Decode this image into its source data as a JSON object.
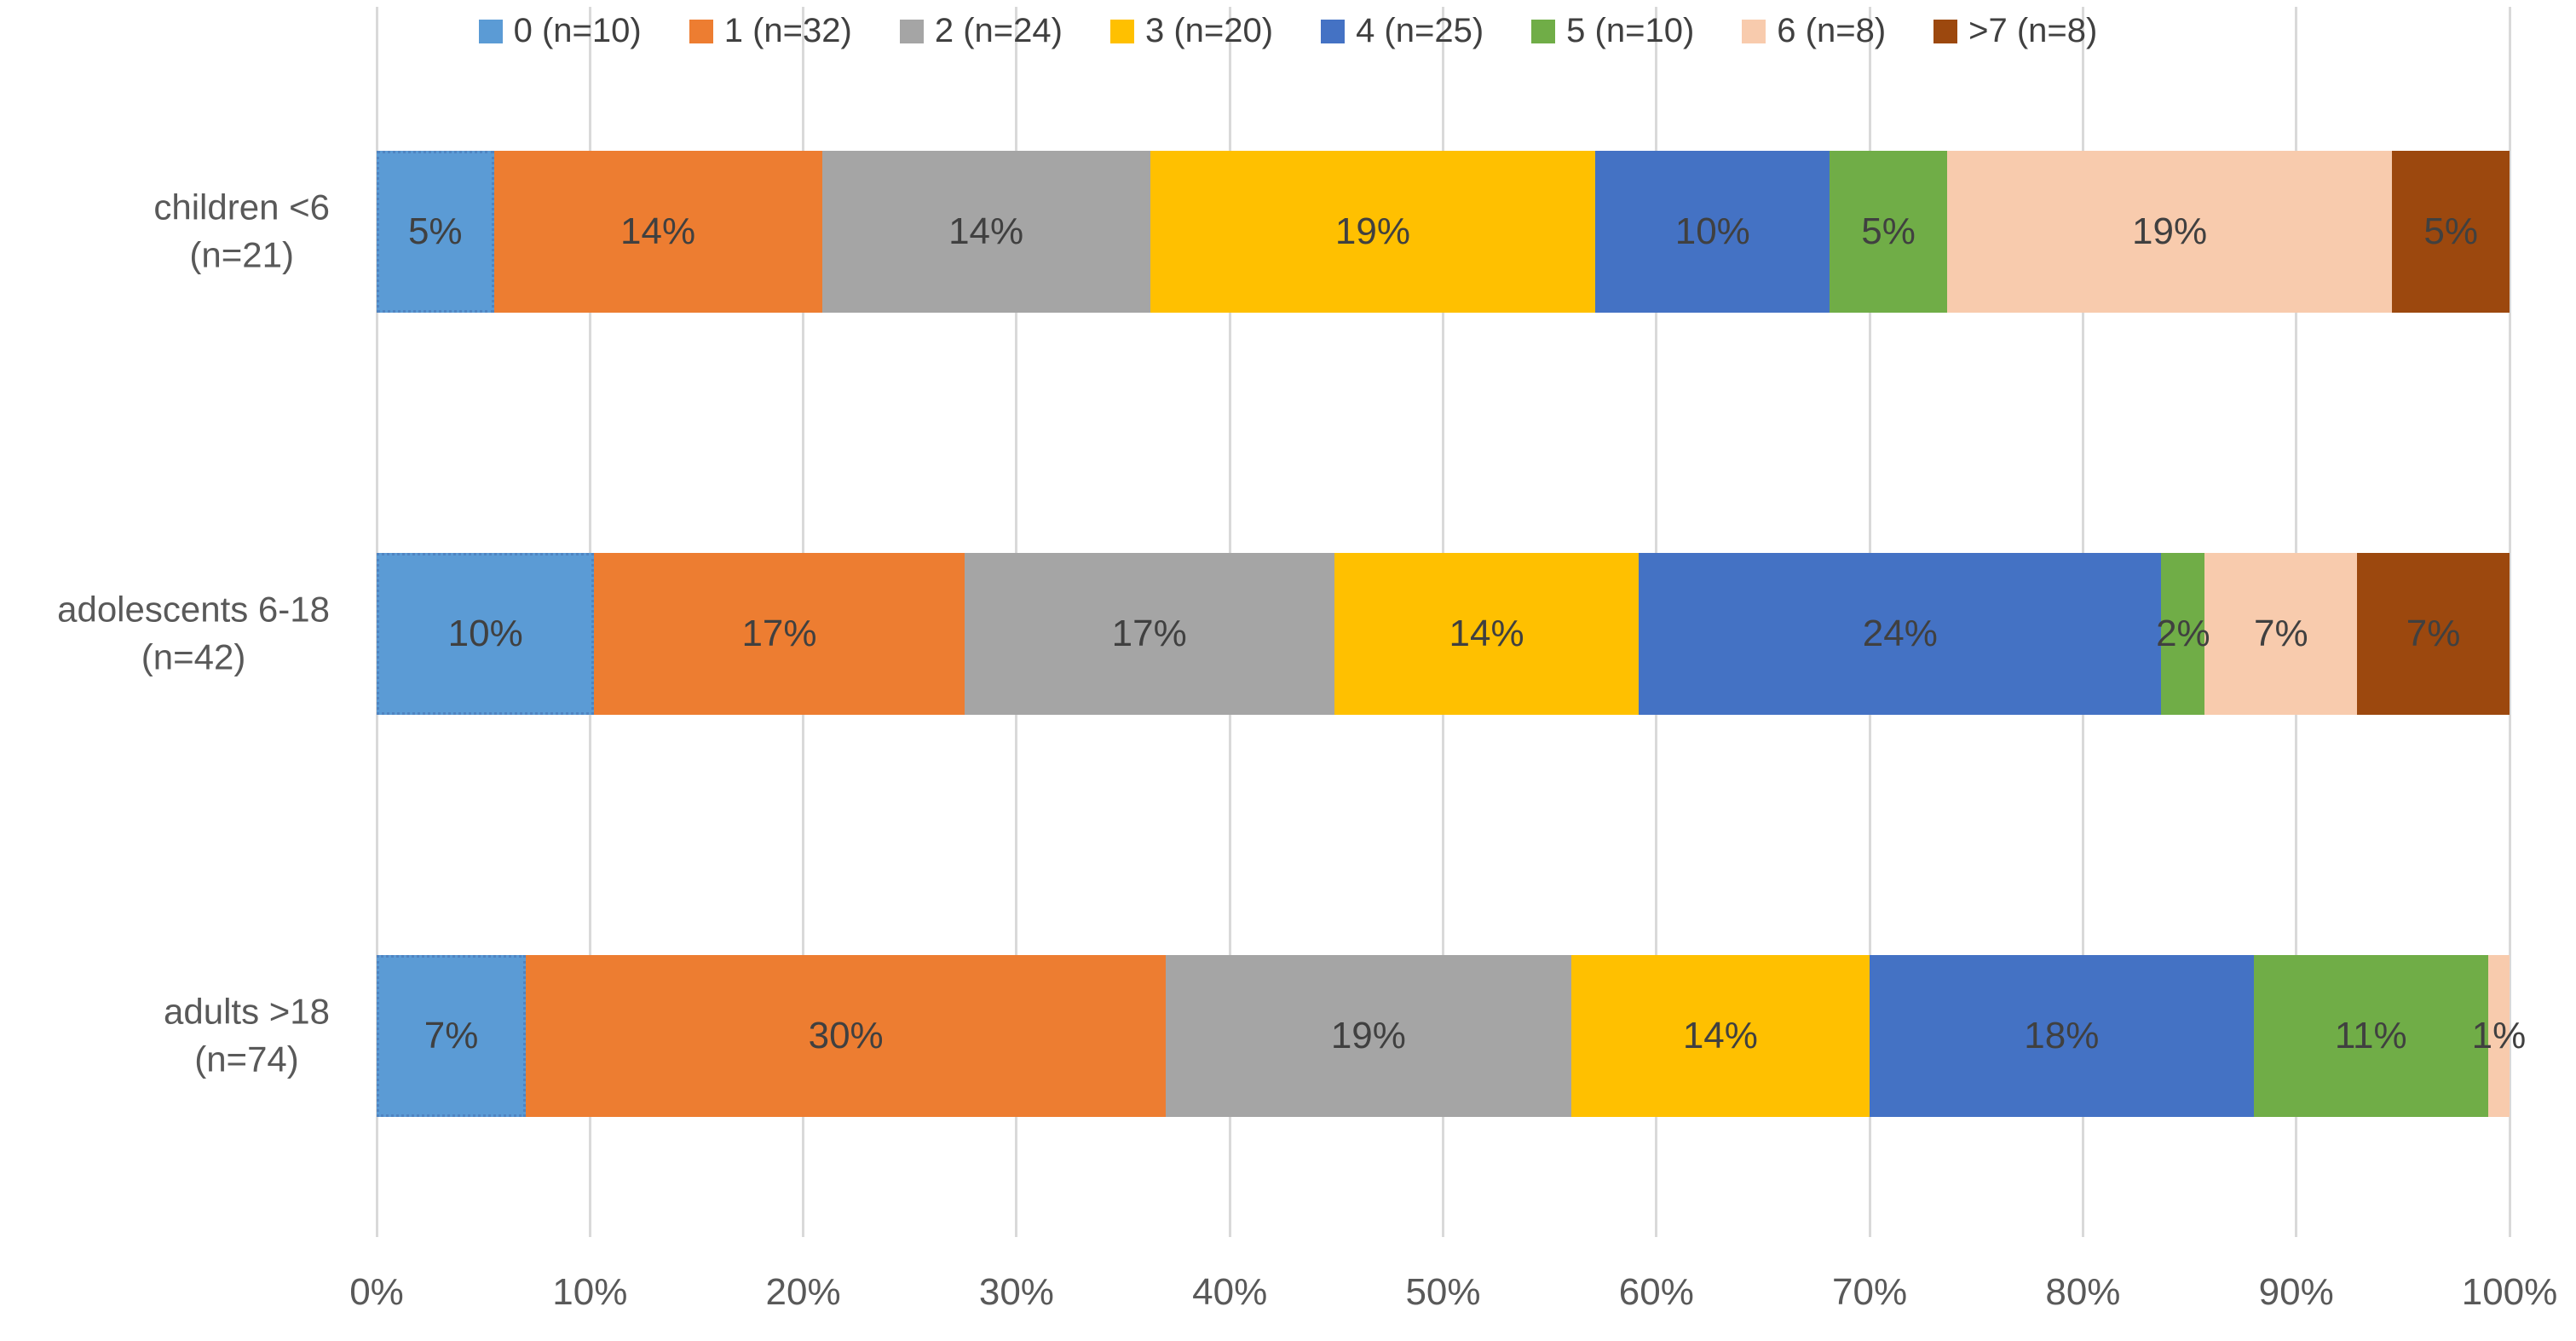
{
  "chart_data": {
    "type": "bar",
    "variant": "horizontal-100pct-stacked",
    "title": "",
    "legend_position": "top",
    "grid": true,
    "normalize_each_row": true,
    "categories": [
      {
        "label": "children <6",
        "sublabel": "(n=21)"
      },
      {
        "label": "adolescents 6-18",
        "sublabel": "(n=42)"
      },
      {
        "label": "adults >18",
        "sublabel": "(n=74)"
      }
    ],
    "series": [
      {
        "name": "0 (n=10)",
        "color": "#5B9BD5",
        "values": [
          5,
          10,
          7
        ],
        "labels": [
          "5%",
          "10%",
          "7%"
        ]
      },
      {
        "name": "1 (n=32)",
        "color": "#ED7D31",
        "values": [
          14,
          17,
          30
        ],
        "labels": [
          "14%",
          "17%",
          "30%"
        ]
      },
      {
        "name": "2 (n=24)",
        "color": "#A5A5A5",
        "values": [
          14,
          17,
          19
        ],
        "labels": [
          "14%",
          "17%",
          "19%"
        ]
      },
      {
        "name": "3 (n=20)",
        "color": "#FFC000",
        "values": [
          19,
          14,
          14
        ],
        "labels": [
          "19%",
          "14%",
          "14%"
        ]
      },
      {
        "name": "4 (n=25)",
        "color": "#4472C4",
        "values": [
          10,
          24,
          18
        ],
        "labels": [
          "10%",
          "24%",
          "18%"
        ]
      },
      {
        "name": "5 (n=10)",
        "color": "#70AD47",
        "values": [
          5,
          2,
          11
        ],
        "labels": [
          "5%",
          "2%",
          "11%"
        ]
      },
      {
        "name": "6 (n=8)",
        "color": "#F8CBAD",
        "values": [
          19,
          7,
          1
        ],
        "labels": [
          "19%",
          "7%",
          "1%"
        ]
      },
      {
        "name": ">7 (n=8)",
        "color": "#9C480E",
        "values": [
          5,
          7,
          0
        ],
        "labels": [
          "5%",
          "7%",
          ""
        ]
      }
    ],
    "xaxis": {
      "range": [
        0,
        100
      ],
      "ticks": [
        "0%",
        "10%",
        "20%",
        "30%",
        "40%",
        "50%",
        "60%",
        "70%",
        "80%",
        "90%",
        "100%"
      ]
    },
    "colors": {
      "gridline": "#d9d9d9",
      "axis_text": "#595959",
      "category_text": "#595959",
      "data_label_text": "#404040",
      "legend_text": "#404040",
      "background": "#ffffff"
    }
  }
}
